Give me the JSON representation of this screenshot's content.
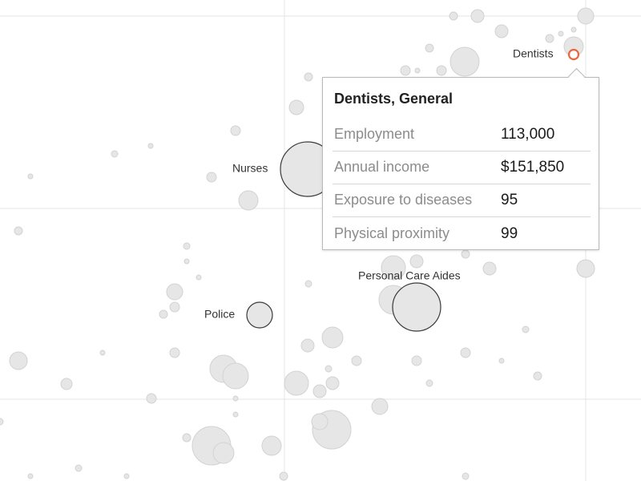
{
  "chart_data": {
    "type": "scatter",
    "highlight_color": "#f0643c",
    "bubble_color": "#e6e6e6",
    "grid": true,
    "labeled_points": [
      {
        "label": "Dentists",
        "highlighted": true
      },
      {
        "label": "Nurses",
        "highlighted": false
      },
      {
        "label": "Personal Care Aides",
        "highlighted": false
      },
      {
        "label": "Police",
        "highlighted": false
      }
    ]
  },
  "tooltip": {
    "title": "Dentists, General",
    "rows": [
      {
        "label": "Employment",
        "value": "113,000"
      },
      {
        "label": "Annual income",
        "value": "$151,850"
      },
      {
        "label": "Exposure to diseases",
        "value": "95"
      },
      {
        "label": "Physical proximity",
        "value": "99"
      }
    ]
  }
}
